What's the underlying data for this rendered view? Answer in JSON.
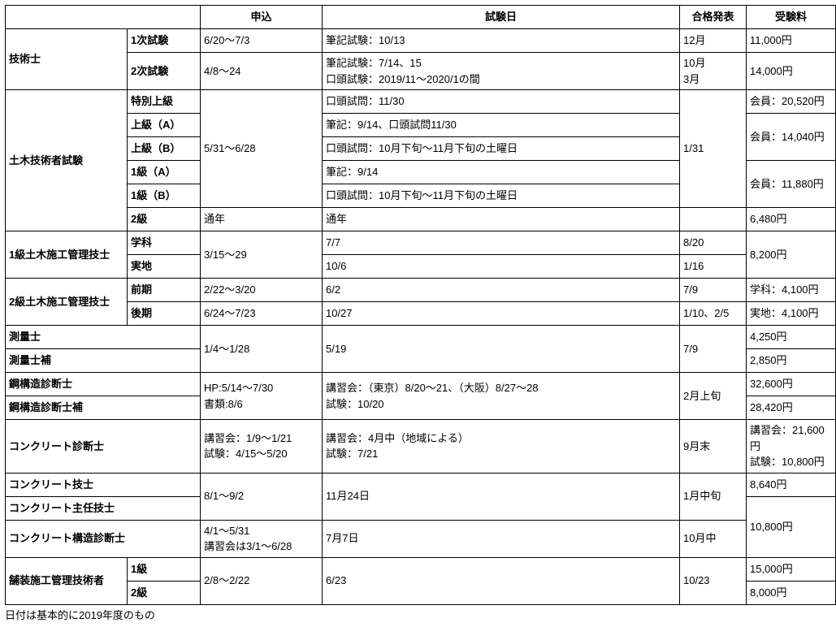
{
  "columns": [
    "申込",
    "試験日",
    "合格発表",
    "受験料"
  ],
  "footnote": "日付は基本的に2019年度のもの",
  "rows": [
    {
      "category": "技術士",
      "sub": "1次試験",
      "app": "6/20～7/3",
      "exam": "筆記試験：10/13",
      "result": "12月",
      "fee": "11,000円"
    },
    {
      "category": "技術士",
      "sub": "2次試験",
      "app": "4/8～24",
      "exam": "筆記試験：7/14、15\n口頭試験：2019/11～2020/1の間",
      "result": "10月\n3月",
      "fee": "14,000円"
    },
    {
      "category": "土木技術者試験",
      "sub": "特別上級",
      "app": "5/31～6/28",
      "exam": "口頭試問：11/30",
      "result": "1/31",
      "fee": "会員：20,520円"
    },
    {
      "category": "土木技術者試験",
      "sub": "上級（A）",
      "app": "5/31～6/28",
      "exam": "筆記：9/14、口頭試問11/30",
      "result": "1/31",
      "fee": "会員：14,040円"
    },
    {
      "category": "土木技術者試験",
      "sub": "上級（B）",
      "app": "5/31～6/28",
      "exam": "口頭試問：10月下旬～11月下旬の土曜日",
      "result": "1/31",
      "fee": "会員：14,040円"
    },
    {
      "category": "土木技術者試験",
      "sub": "1級（A）",
      "app": "5/31～6/28",
      "exam": "筆記：9/14",
      "result": "1/31",
      "fee": "会員：11,880円"
    },
    {
      "category": "土木技術者試験",
      "sub": "1級（B）",
      "app": "5/31～6/28",
      "exam": "口頭試問：10月下旬～11月下旬の土曜日",
      "result": "1/31",
      "fee": "会員：11,880円"
    },
    {
      "category": "土木技術者試験",
      "sub": "2級",
      "app": "通年",
      "exam": "通年",
      "result": "",
      "fee": "6,480円"
    },
    {
      "category": "1級土木施工管理技士",
      "sub": "学科",
      "app": "3/15～29",
      "exam": "7/7",
      "result": "8/20",
      "fee": "8,200円"
    },
    {
      "category": "1級土木施工管理技士",
      "sub": "実地",
      "app": "3/15～29",
      "exam": "10/6",
      "result": "1/16",
      "fee": "8,200円"
    },
    {
      "category": "2級土木施工管理技士",
      "sub": "前期",
      "app": "2/22～3/20",
      "exam": "6/2",
      "result": "7/9",
      "fee": "学科：4,100円"
    },
    {
      "category": "2級土木施工管理技士",
      "sub": "後期",
      "app": "6/24～7/23",
      "exam": "10/27",
      "result": "1/10、2/5",
      "fee": "実地：4,100円"
    },
    {
      "category": "測量士",
      "sub": "",
      "app": "1/4～1/28",
      "exam": "5/19",
      "result": "7/9",
      "fee": "4,250円"
    },
    {
      "category": "測量士補",
      "sub": "",
      "app": "1/4～1/28",
      "exam": "5/19",
      "result": "7/9",
      "fee": "2,850円"
    },
    {
      "category": "鋼構造診断士",
      "sub": "",
      "app": "HP:5/14～7/30\n書類:8/6",
      "exam": "講習会：（東京）8/20～21、（大阪）8/27～28\n試験：10/20",
      "result": "2月上旬",
      "fee": "32,600円"
    },
    {
      "category": "鋼構造診断士補",
      "sub": "",
      "app": "HP:5/14～7/30\n書類:8/6",
      "exam": "講習会：（東京）8/20～21、（大阪）8/27～28\n試験：10/20",
      "result": "2月上旬",
      "fee": "28,420円"
    },
    {
      "category": "コンクリート診断士",
      "sub": "",
      "app": "講習会：1/9～1/21\n試験：4/15～5/20",
      "exam": "講習会：4月中（地域による）\n試験：7/21",
      "result": "9月末",
      "fee": "講習会：21,600円\n試験：10,800円"
    },
    {
      "category": "コンクリート技士",
      "sub": "",
      "app": "8/1～9/2",
      "exam": "11月24日",
      "result": "1月中旬",
      "fee": "8,640円"
    },
    {
      "category": "コンクリート主任技士",
      "sub": "",
      "app": "8/1～9/2",
      "exam": "11月24日",
      "result": "1月中旬",
      "fee": "10,800円"
    },
    {
      "category": "コンクリート構造診断士",
      "sub": "",
      "app": "4/1～5/31\n講習会は3/1～6/28",
      "exam": "7月7日",
      "result": "10月中",
      "fee": "10,800円"
    },
    {
      "category": "舗装施工管理技術者",
      "sub": "1級",
      "app": "2/8～2/22",
      "exam": "6/23",
      "result": "10/23",
      "fee": "15,000円"
    },
    {
      "category": "舗装施工管理技術者",
      "sub": "2級",
      "app": "2/8～2/22",
      "exam": "6/23",
      "result": "10/23",
      "fee": "8,000円"
    }
  ]
}
